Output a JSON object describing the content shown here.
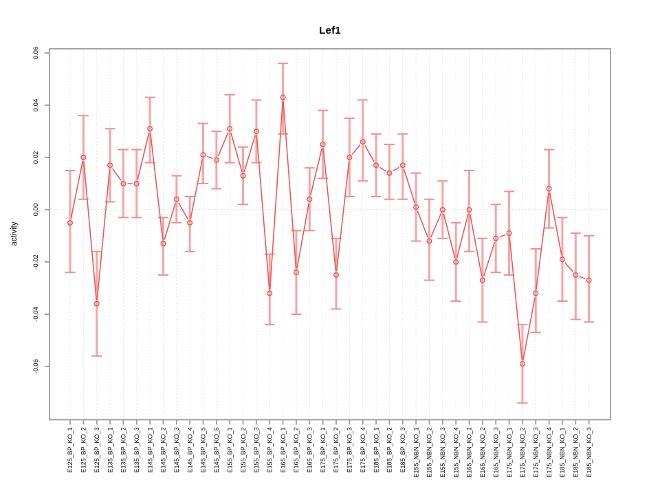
{
  "title": "Lef1",
  "chart_data": {
    "type": "scatter",
    "title": "Lef1",
    "xlabel": "",
    "ylabel": "activity",
    "ylim": [
      -0.08,
      0.062
    ],
    "yticks": [
      0.06,
      0.04,
      0.02,
      0.0,
      -0.02,
      -0.04,
      -0.06
    ],
    "ytick_labels": [
      "0.06",
      "0.04",
      "0.02",
      "0.00",
      "-0.02",
      "-0.04",
      "-0.06"
    ],
    "grid": "vertical-dotted-per-category",
    "zero_reference_line": true,
    "legend_position": "none",
    "marker": "open-circle",
    "line_style": "segments-with-point-gaps",
    "colors": {
      "line": "#f25555",
      "marker": "#f25555",
      "error_bar": "#f8a4a4",
      "error_cap": "#f58d8d",
      "axis_box": "#9b9b9b",
      "gridline": "#e3e3e3",
      "zero_line": "#d2d2d2",
      "background": "#ffffff"
    },
    "categories": [
      "E125_BP_KO_1",
      "E125_BP_KO_2",
      "E125_BP_KO_3",
      "E135_BP_KO_1",
      "E135_BP_KO_2",
      "E135_BP_KO_3",
      "E145_BP_KO_1",
      "E145_BP_KO_2",
      "E145_BP_KO_3",
      "E145_BP_KO_4",
      "E145_BP_KO_5",
      "E145_BP_KO_6",
      "E155_BP_KO_1",
      "E155_BP_KO_2",
      "E155_BP_KO_3",
      "E155_BP_KO_4",
      "E165_BP_KO_1",
      "E165_BP_KO_2",
      "E165_BP_KO_3",
      "E175_BP_KO_1",
      "E175_BP_KO_2",
      "E175_BP_KO_3",
      "E175_BP_KO_4",
      "E185_BP_KO_1",
      "E185_BP_KO_2",
      "E185_BP_KO_3",
      "E155_NBN_KO_1",
      "E155_NBN_KO_2",
      "E155_NBN_KO_3",
      "E155_NBN_KO_4",
      "E165_NBN_KO_1",
      "E165_NBN_KO_2",
      "E165_NBN_KO_3",
      "E175_NBN_KO_1",
      "E175_NBN_KO_2",
      "E175_NBN_KO_3",
      "E175_NBN_KO_4",
      "E185_NBN_KO_1",
      "E185_NBN_KO_2",
      "E185_NBN_KO_3"
    ],
    "series": [
      {
        "name": "activity",
        "values": [
          -0.005,
          0.02,
          -0.036,
          0.017,
          0.01,
          0.01,
          0.031,
          -0.013,
          0.004,
          -0.005,
          0.021,
          0.019,
          0.031,
          0.013,
          0.03,
          -0.032,
          0.043,
          -0.024,
          0.004,
          0.025,
          -0.025,
          0.02,
          0.026,
          0.017,
          0.014,
          0.017,
          0.001,
          -0.012,
          0.0,
          -0.02,
          0.0,
          -0.027,
          -0.011,
          -0.009,
          -0.059,
          -0.032,
          0.008,
          -0.019,
          -0.025,
          -0.027
        ],
        "ci_low": [
          -0.024,
          0.004,
          -0.056,
          0.003,
          -0.003,
          -0.003,
          0.018,
          -0.025,
          -0.005,
          -0.016,
          0.01,
          0.008,
          0.018,
          0.002,
          0.018,
          -0.044,
          0.029,
          -0.04,
          -0.008,
          0.012,
          -0.038,
          0.005,
          0.011,
          0.005,
          0.004,
          0.004,
          -0.012,
          -0.027,
          -0.011,
          -0.035,
          -0.016,
          -0.043,
          -0.024,
          -0.025,
          -0.074,
          -0.047,
          -0.007,
          -0.035,
          -0.042,
          -0.043
        ],
        "ci_high": [
          0.015,
          0.036,
          -0.016,
          0.031,
          0.023,
          0.023,
          0.043,
          -0.003,
          0.013,
          0.005,
          0.033,
          0.03,
          0.044,
          0.024,
          0.042,
          -0.017,
          0.056,
          -0.008,
          0.016,
          0.038,
          -0.011,
          0.035,
          0.042,
          0.029,
          0.025,
          0.029,
          0.014,
          0.004,
          0.011,
          -0.005,
          0.015,
          -0.011,
          0.002,
          0.007,
          -0.044,
          -0.015,
          0.023,
          -0.003,
          -0.009,
          -0.01
        ]
      }
    ]
  }
}
